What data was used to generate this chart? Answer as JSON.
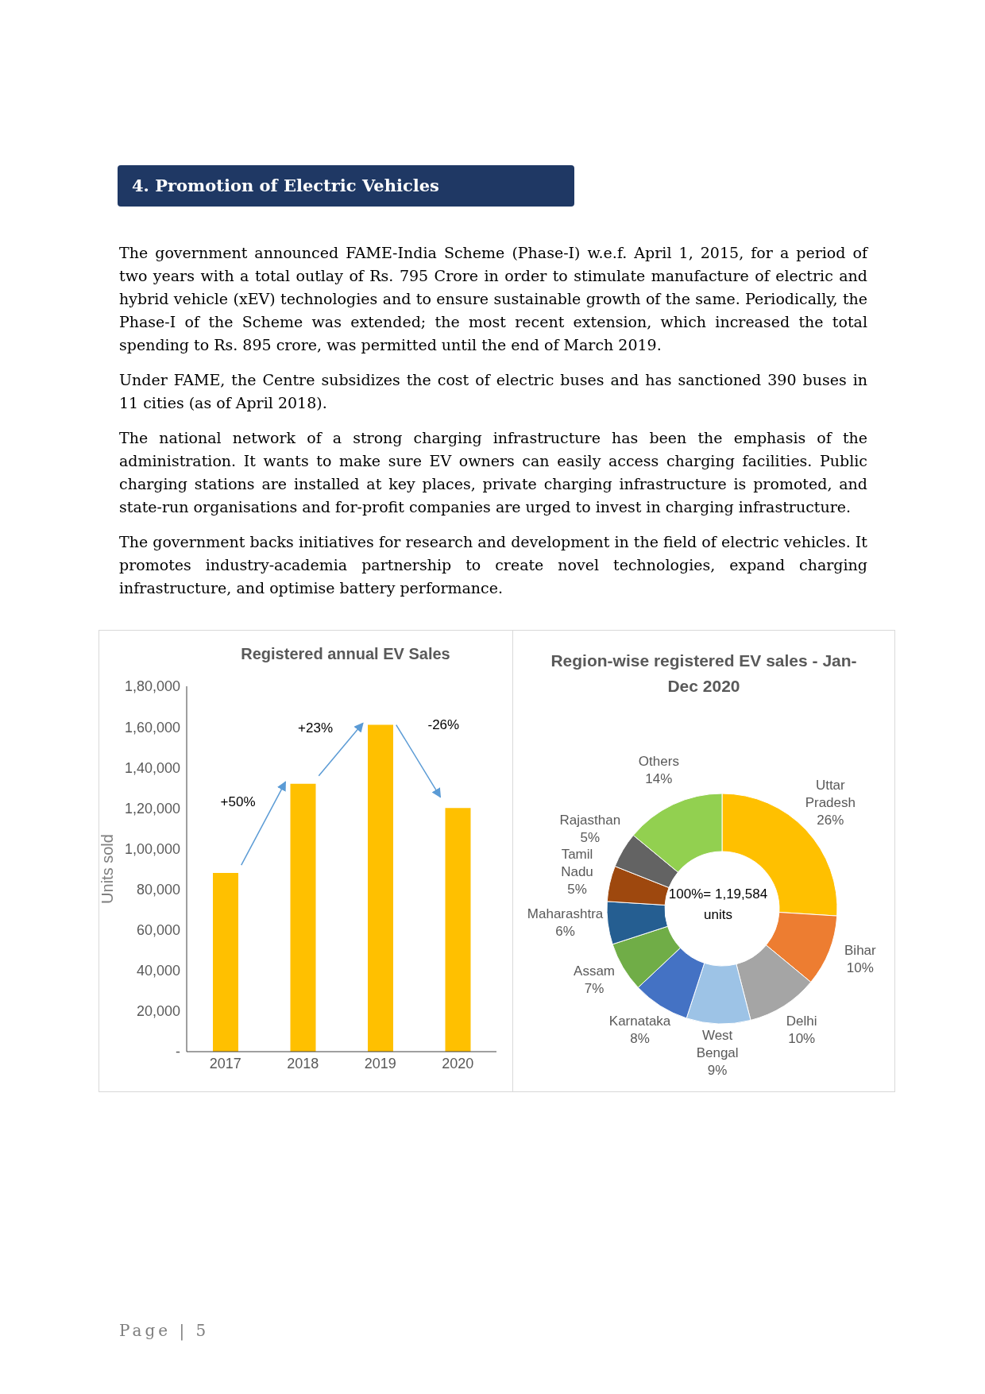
{
  "chart_data": [
    {
      "type": "bar",
      "title": "Registered annual EV Sales",
      "ylabel": "Units sold",
      "categories": [
        "2017",
        "2018",
        "2019",
        "2020"
      ],
      "values": [
        88000,
        132000,
        161000,
        120000
      ],
      "color": "#ffc000",
      "ylim": [
        0,
        180000
      ],
      "yticks": [
        {
          "value": 0,
          "label": "-"
        },
        {
          "value": 20000,
          "label": "20,000"
        },
        {
          "value": 40000,
          "label": "40,000"
        },
        {
          "value": 60000,
          "label": "60,000"
        },
        {
          "value": 80000,
          "label": "80,000"
        },
        {
          "value": 100000,
          "label": "1,00,000"
        },
        {
          "value": 120000,
          "label": "1,20,000"
        },
        {
          "value": 140000,
          "label": "1,40,000"
        },
        {
          "value": 160000,
          "label": "1,60,000"
        },
        {
          "value": 180000,
          "label": "1,80,000"
        }
      ],
      "grid": false,
      "legend": false,
      "annotations": [
        "4. Promotion of Electric Vehicles",
        "The government announced FAME-India Scheme (Phase-I) w.e.f. April 1, 2015, for a period of two years with a total outlay of Rs. 795 Crore in order to stimulate manufacture of electric and hybrid vehicle (xEV) technologies and to ensure sustainable growth of the same. Periodically, the Phase-I of the Scheme was extended; the most recent extension, which increased the total spending to Rs. 895 crore, was permitted until the end of March 2019.",
        "Under FAME, the Centre subsidizes the cost of electric buses and has sanctioned 390 buses in 11 cities (as of April 2018).",
        "The national network of a strong charging infrastructure has been the emphasis of the administration. It wants to make sure EV owners can easily access charging facilities. Public charging stations are installed at key places, private charging infrastructure is promoted, and state-run organisations and for-profit companies are urged to invest in charging infrastructure.",
        "The government backs initiatives for research and development in the field of electric vehicles. It promotes industry-academia partnership to create novel technologies, expand charging infrastructure, and optimise battery performance.",
        "+50%",
        "+23%",
        "-26%",
        "Page | 5"
      ]
    },
    {
      "type": "donut",
      "title": "Region-wise registered EV sales - Jan-Dec 2020",
      "categories": [
        "Uttar Pradesh",
        "Bihar",
        "Delhi",
        "West Bengal",
        "Karnataka",
        "Assam",
        "Maharashtra",
        "Tamil Nadu",
        "Rajasthan",
        "Others"
      ],
      "values": [
        26,
        10,
        10,
        9,
        8,
        7,
        6,
        5,
        5,
        14
      ],
      "value_labels": [
        "26%",
        "10%",
        "10%",
        "9%",
        "8%",
        "7%",
        "6%",
        "5%",
        "5%",
        "14%"
      ],
      "colors": [
        "#ffc000",
        "#ed7d31",
        "#a5a5a5",
        "#9dc3e6",
        "#4472c4",
        "#70ad47",
        "#255e91",
        "#9e480e",
        "#636363",
        "#92d050"
      ],
      "legend": false,
      "annotations": [
        "100%= 1,19,584 units"
      ]
    }
  ]
}
